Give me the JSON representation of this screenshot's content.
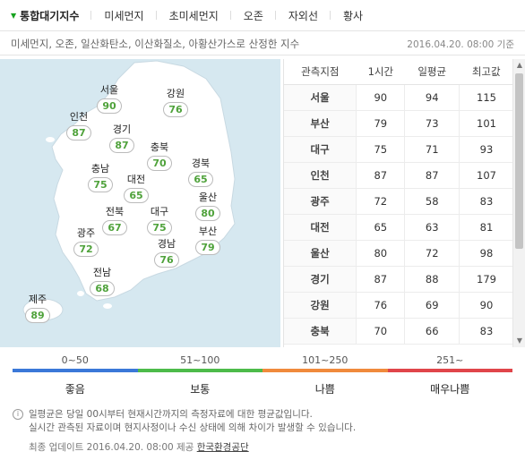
{
  "tabs": [
    {
      "label": "통합대기지수",
      "active": true
    },
    {
      "label": "미세먼지",
      "active": false
    },
    {
      "label": "초미세먼지",
      "active": false
    },
    {
      "label": "오존",
      "active": false
    },
    {
      "label": "자외선",
      "active": false
    },
    {
      "label": "황사",
      "active": false
    }
  ],
  "description": "미세먼지, 오존, 일산화탄소, 이산화질소, 아황산가스로 산정한 지수",
  "timestamp": "2016.04.20. 08:00 기준",
  "map": {
    "cities": [
      {
        "name": "서울",
        "value": "90"
      },
      {
        "name": "강원",
        "value": "76"
      },
      {
        "name": "인천",
        "value": "87"
      },
      {
        "name": "경기",
        "value": "87"
      },
      {
        "name": "충북",
        "value": "70"
      },
      {
        "name": "충남",
        "value": "75"
      },
      {
        "name": "대전",
        "value": "65"
      },
      {
        "name": "경북",
        "value": "65"
      },
      {
        "name": "전북",
        "value": "67"
      },
      {
        "name": "대구",
        "value": "75"
      },
      {
        "name": "울산",
        "value": "80"
      },
      {
        "name": "광주",
        "value": "72"
      },
      {
        "name": "부산",
        "value": "79"
      },
      {
        "name": "경남",
        "value": "76"
      },
      {
        "name": "전남",
        "value": "68"
      },
      {
        "name": "제주",
        "value": "89"
      }
    ]
  },
  "table": {
    "headers": [
      "관측지점",
      "1시간",
      "일평균",
      "최고값"
    ],
    "rows": [
      [
        "서울",
        "90",
        "94",
        "115"
      ],
      [
        "부산",
        "79",
        "73",
        "101"
      ],
      [
        "대구",
        "75",
        "71",
        "93"
      ],
      [
        "인천",
        "87",
        "87",
        "107"
      ],
      [
        "광주",
        "72",
        "58",
        "83"
      ],
      [
        "대전",
        "65",
        "63",
        "81"
      ],
      [
        "울산",
        "80",
        "72",
        "98"
      ],
      [
        "경기",
        "87",
        "88",
        "179"
      ],
      [
        "강원",
        "76",
        "69",
        "90"
      ],
      [
        "충북",
        "70",
        "66",
        "83"
      ]
    ]
  },
  "legend": [
    {
      "range": "0~50",
      "grade": "좋음",
      "color": "#3b78d8"
    },
    {
      "range": "51~100",
      "grade": "보통",
      "color": "#4dbb4a"
    },
    {
      "range": "101~250",
      "grade": "나쁨",
      "color": "#f08a3c"
    },
    {
      "range": "251~",
      "grade": "매우나쁨",
      "color": "#e0454a"
    }
  ],
  "note": {
    "line1": "일평균은 당일 00시부터 현재시간까지의 측정자료에 대한 평균값입니다.",
    "line2": "실시간 관측된 자료이며 현지사정이나 수신 상태에 의해 차이가 발생할 수 있습니다."
  },
  "update": {
    "prefix": "최종 업데이트 2016.04.20. 08:00 제공",
    "provider": "한국환경공단"
  },
  "colors": {
    "accent": "#17a21f",
    "good_value": "#4fa23b",
    "sea": "#d6e8f0",
    "land": "#ffffff"
  }
}
